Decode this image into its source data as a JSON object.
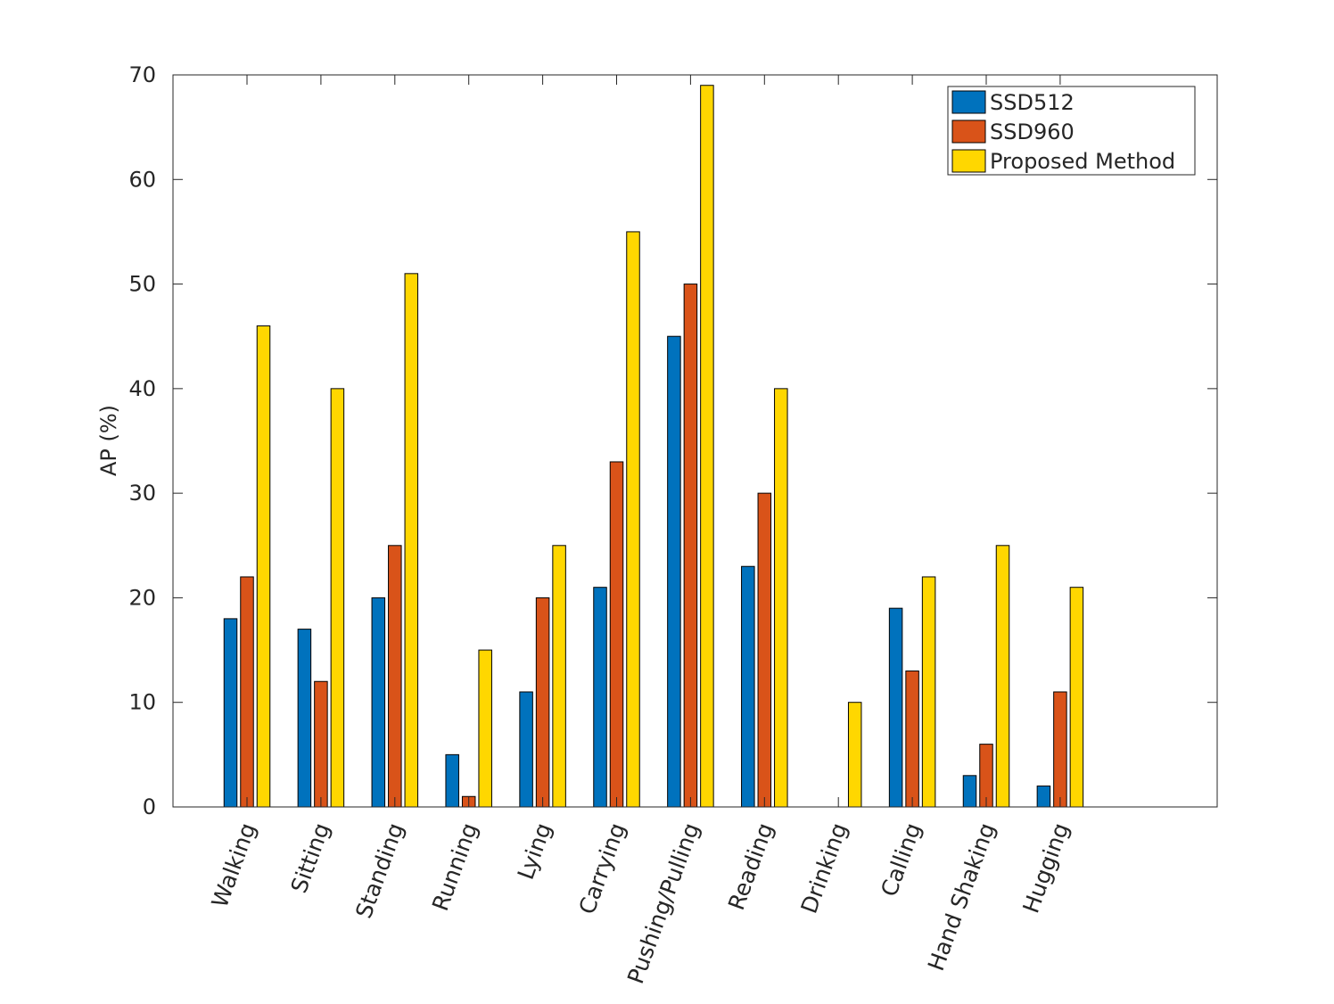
{
  "chart_data": {
    "type": "bar",
    "title": "",
    "xlabel": "",
    "ylabel": "AP (%)",
    "ylim": [
      0,
      70
    ],
    "yticks": [
      0,
      10,
      20,
      30,
      40,
      50,
      60,
      70
    ],
    "grid": false,
    "legend_position": "top-right",
    "categories": [
      "Walking",
      "Sitting",
      "Standing",
      "Running",
      "Lying",
      "Carrying",
      "Pushing/Pulling",
      "Reading",
      "Drinking",
      "Calling",
      "Hand Shaking",
      "Hugging"
    ],
    "series": [
      {
        "name": "SSD512",
        "color": "#0072BD",
        "values": [
          18,
          17,
          20,
          5,
          11,
          21,
          45,
          23,
          0,
          19,
          3,
          2
        ]
      },
      {
        "name": "SSD960",
        "color": "#D95319",
        "values": [
          22,
          12,
          25,
          1,
          20,
          33,
          50,
          30,
          0,
          13,
          6,
          11
        ]
      },
      {
        "name": "Proposed Method",
        "color": "#FFD700",
        "values": [
          46,
          40,
          51,
          15,
          25,
          55,
          69,
          40,
          10,
          22,
          25,
          21
        ]
      }
    ]
  }
}
